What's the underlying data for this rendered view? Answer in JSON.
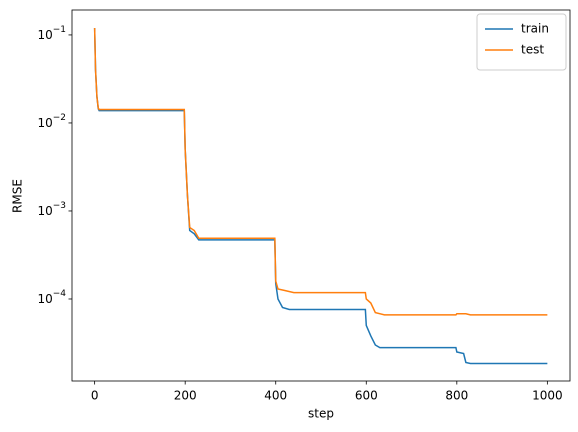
{
  "chart_data": {
    "type": "line",
    "xlabel": "step",
    "ylabel": "RMSE",
    "yscale": "log",
    "legend": "upper right",
    "xlim": [
      -50,
      1050
    ],
    "xticks": [
      0,
      200,
      400,
      600,
      800,
      1000
    ],
    "ylim": [
      1.17e-05,
      0.192
    ],
    "yticks": [
      {
        "value": 0.1,
        "label": "10",
        "exponent": "−1"
      },
      {
        "value": 0.01,
        "label": "10",
        "exponent": "−2"
      },
      {
        "value": 0.001,
        "label": "10",
        "exponent": "−3"
      },
      {
        "value": 0.0001,
        "label": "10",
        "exponent": "−4"
      }
    ],
    "series": [
      {
        "name": "train",
        "color": "#1f77b4",
        "x": [
          0,
          2,
          5,
          8,
          10,
          198,
          200,
          205,
          210,
          220,
          230,
          398,
          400,
          405,
          415,
          430,
          598,
          600,
          610,
          620,
          630,
          798,
          800,
          815,
          820,
          830,
          1000
        ],
        "values": [
          0.12,
          0.04,
          0.02,
          0.0145,
          0.0138,
          0.0138,
          0.005,
          0.0015,
          0.0006,
          0.00055,
          0.00047,
          0.00047,
          0.00015,
          0.0001,
          8e-05,
          7.6e-05,
          7.6e-05,
          5e-05,
          3.8e-05,
          3e-05,
          2.8e-05,
          2.8e-05,
          2.5e-05,
          2.4e-05,
          1.9e-05,
          1.85e-05,
          1.85e-05
        ]
      },
      {
        "name": "test",
        "color": "#ff7f0e",
        "x": [
          0,
          2,
          5,
          8,
          10,
          198,
          200,
          205,
          210,
          220,
          230,
          398,
          400,
          405,
          420,
          440,
          598,
          600,
          610,
          620,
          640,
          798,
          800,
          820,
          830,
          1000
        ],
        "values": [
          0.12,
          0.04,
          0.02,
          0.0148,
          0.0142,
          0.0142,
          0.005,
          0.0015,
          0.00065,
          0.0006,
          0.00049,
          0.00049,
          0.00016,
          0.00013,
          0.000125,
          0.000118,
          0.000118,
          0.0001,
          9e-05,
          7e-05,
          6.6e-05,
          6.6e-05,
          6.8e-05,
          6.8e-05,
          6.6e-05,
          6.6e-05
        ]
      }
    ]
  }
}
